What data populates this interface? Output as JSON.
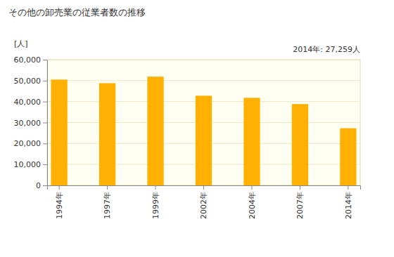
{
  "chart_data": {
    "type": "bar",
    "title": "その他の卸売業の従業者数の推移",
    "y_label": "[人]",
    "annotation": "2014年: 27,259人",
    "categories": [
      "1994年",
      "1997年",
      "1999年",
      "2002年",
      "2004年",
      "2007年",
      "2014年"
    ],
    "values": [
      50500,
      48800,
      51900,
      42800,
      41800,
      38800,
      27259
    ],
    "color": "#ffb000",
    "ylim": [
      0,
      60000
    ],
    "yticks": [
      0,
      {
        "value": 10000,
        "label": "10,000"
      },
      {
        "value": 20000,
        "label": "20,000"
      },
      {
        "value": 30000,
        "label": "30,000"
      },
      {
        "value": 40000,
        "label": "40,000"
      },
      {
        "value": 50000,
        "label": "50,000"
      },
      {
        "value": 60000,
        "label": "60,000"
      }
    ],
    "grid": true
  }
}
